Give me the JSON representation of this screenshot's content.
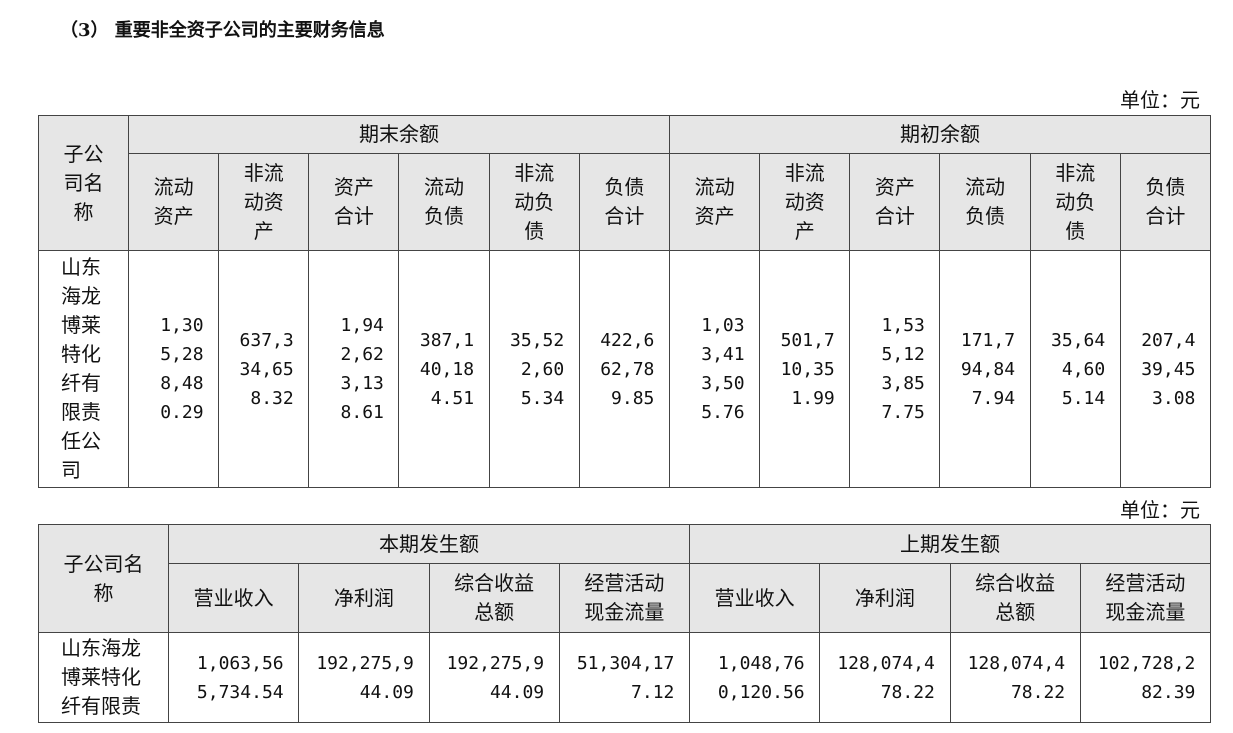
{
  "title": "（3） 重要非全资子公司的主要财务信息",
  "table1": {
    "unit": "单位：元",
    "corner": "子公司名称",
    "groups": [
      "期末余额",
      "期初余额"
    ],
    "columns": [
      "流动资产",
      "非流动资产",
      "资产合计",
      "流动负债",
      "非流动负债",
      "负债合计"
    ],
    "rows": [
      {
        "name": "山东海龙博莱特化纤有限责任公司",
        "cells": [
          "1,305,288,480.29",
          "637,334,658.32",
          "1,942,623,138.61",
          "387,140,184.51",
          "35,522,605.34",
          "422,662,789.85",
          "1,033,413,505.76",
          "501,710,351.99",
          "1,535,123,857.75",
          "171,794,847.94",
          "35,644,605.14",
          "207,439,453.08"
        ]
      }
    ]
  },
  "table2": {
    "unit": "单位：元",
    "corner": "子公司名称",
    "groups": [
      "本期发生额",
      "上期发生额"
    ],
    "columns": [
      "营业收入",
      "净利润",
      "综合收益总额",
      "经营活动现金流量"
    ],
    "rows": [
      {
        "name": "山东海龙博莱特化纤有限责",
        "cells": [
          "1,063,565,734.54",
          "192,275,944.09",
          "192,275,944.09",
          "51,304,177.12",
          "1,048,760,120.56",
          "128,074,478.22",
          "128,074,478.22",
          "102,728,282.39"
        ]
      }
    ]
  }
}
